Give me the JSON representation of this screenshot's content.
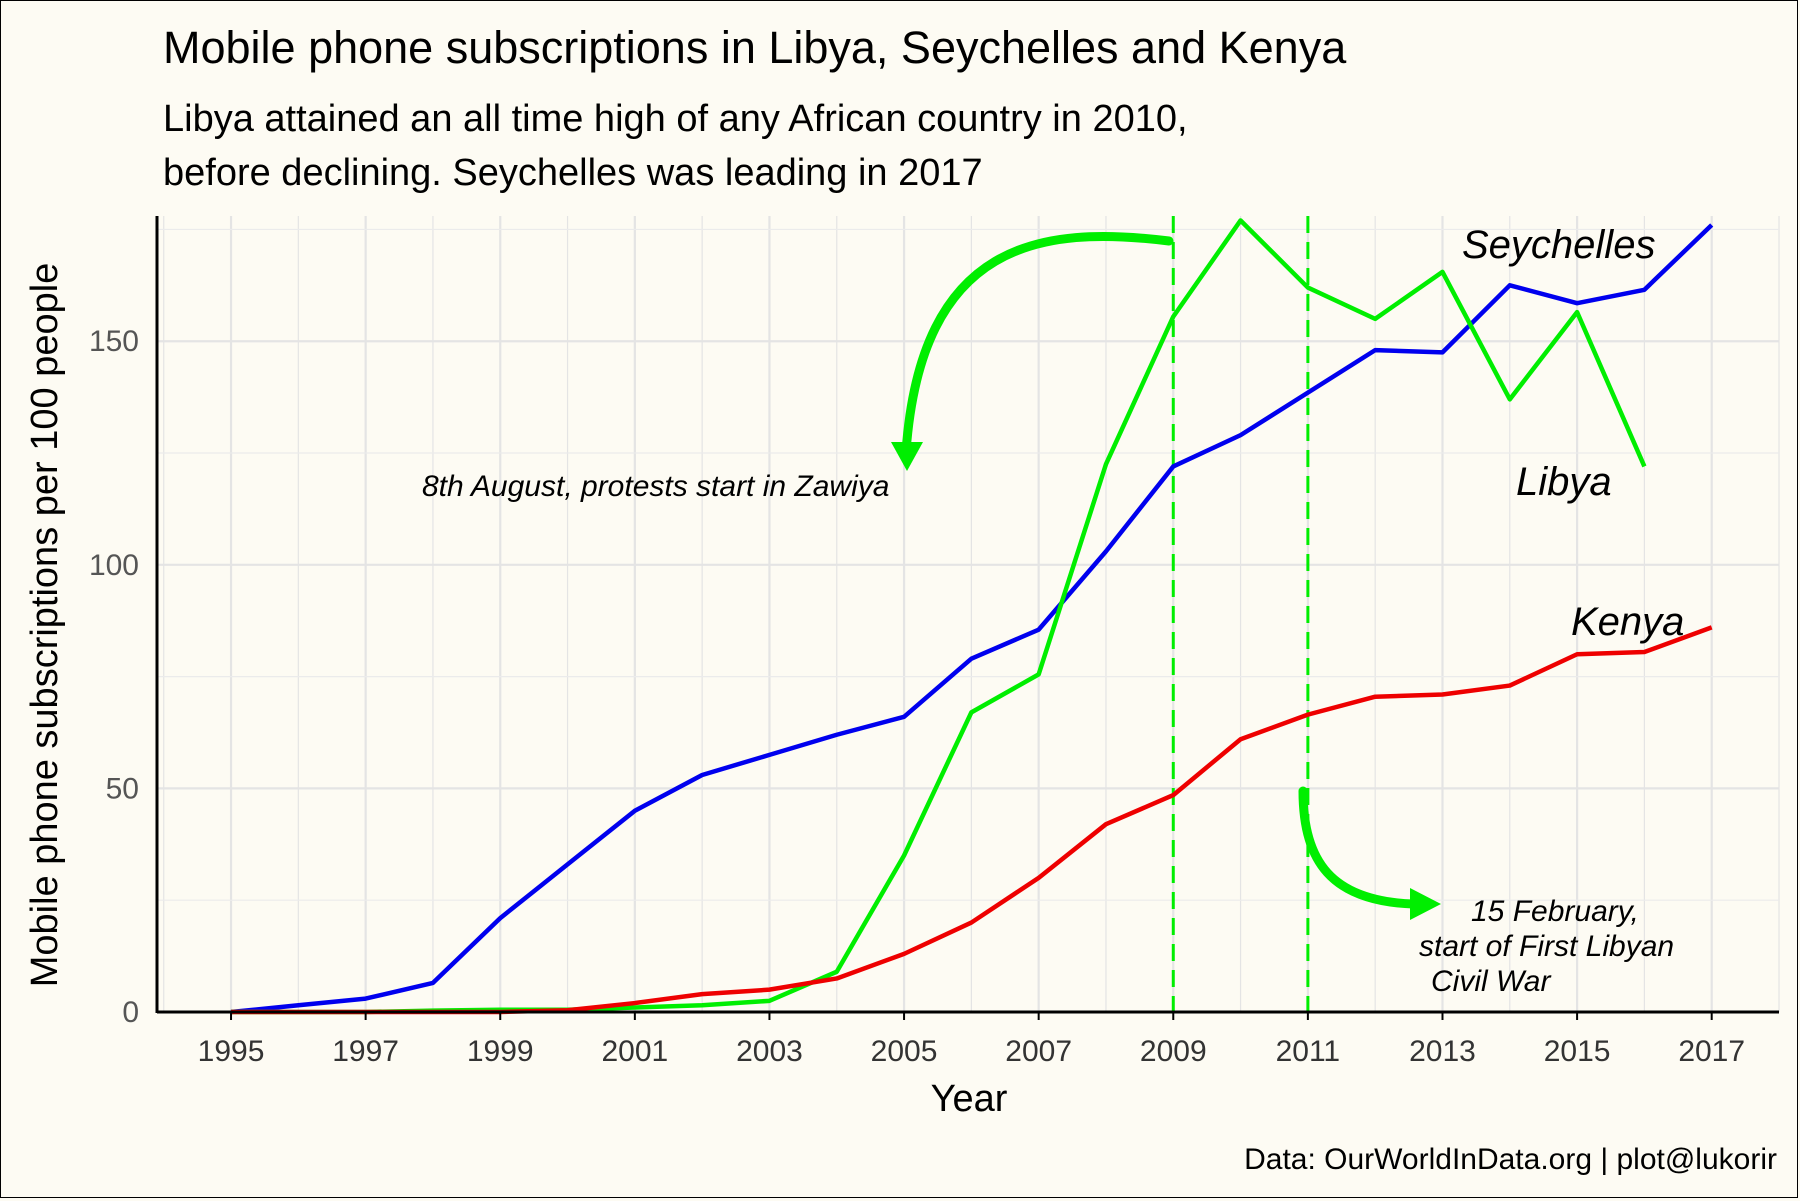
{
  "chart_data": {
    "type": "line",
    "title": "Mobile phone subscriptions in Libya, Seychelles and Kenya",
    "subtitle_lines": [
      "Libya attained an all time high of any African country in 2010,",
      "before declining. Seychelles was leading in 2017"
    ],
    "xlabel": "Year",
    "ylabel": "Mobile phone subscriptions per 100 people",
    "caption": "Data: OurWorldInData.org | plot@lukorir",
    "xlim": [
      1993.9,
      2018.0
    ],
    "ylim": [
      0,
      178
    ],
    "x_ticks": [
      1995,
      1997,
      1999,
      2001,
      2003,
      2005,
      2007,
      2009,
      2011,
      2013,
      2015,
      2017
    ],
    "y_ticks": [
      0,
      50,
      100,
      150
    ],
    "grid": true,
    "legend": "none",
    "series": [
      {
        "name": "Seychelles",
        "color": "#0000ee",
        "x": [
          1995,
          1996,
          1997,
          1998,
          1999,
          2000,
          2001,
          2002,
          2003,
          2004,
          2005,
          2006,
          2007,
          2008,
          2009,
          2010,
          2011,
          2012,
          2013,
          2014,
          2015,
          2016,
          2017
        ],
        "y": [
          0,
          1.5,
          3,
          6.5,
          21,
          33,
          45,
          53,
          57.5,
          62,
          66,
          79,
          85.5,
          103,
          122,
          129,
          138.5,
          148,
          147.5,
          162.5,
          158.5,
          161.5,
          176
        ]
      },
      {
        "name": "Libya",
        "color": "#00ee00",
        "x": [
          1995,
          1996,
          1997,
          1998,
          1999,
          2000,
          2001,
          2002,
          2003,
          2004,
          2005,
          2006,
          2007,
          2008,
          2009,
          2010,
          2011,
          2012,
          2013,
          2014,
          2015,
          2016
        ],
        "y": [
          0,
          0,
          0,
          0.3,
          0.5,
          0.5,
          1,
          1.5,
          2.5,
          9,
          35,
          67,
          75.5,
          122.5,
          155.5,
          177,
          162,
          155,
          165.5,
          137,
          156.5,
          122
        ]
      },
      {
        "name": "Kenya",
        "color": "#ee0000",
        "x": [
          1995,
          1996,
          1997,
          1998,
          1999,
          2000,
          2001,
          2002,
          2003,
          2004,
          2005,
          2006,
          2007,
          2008,
          2009,
          2010,
          2011,
          2012,
          2013,
          2014,
          2015,
          2016,
          2017
        ],
        "y": [
          0,
          0,
          0,
          0,
          0,
          0.4,
          2,
          4,
          5,
          7.5,
          13,
          20,
          30,
          42,
          48.5,
          61,
          66.5,
          70.5,
          71,
          73,
          80,
          80.5,
          86
        ]
      }
    ],
    "vlines": [
      {
        "x": 2009,
        "color": "#00ee00",
        "dashed": true
      },
      {
        "x": 2011,
        "color": "#00ee00",
        "dashed": true
      }
    ],
    "annotations": [
      {
        "lines": [
          "8th August, protests start in Zawiya"
        ]
      },
      {
        "lines": [
          "15 February,",
          "start of First Libyan",
          "Civil War"
        ]
      }
    ]
  }
}
